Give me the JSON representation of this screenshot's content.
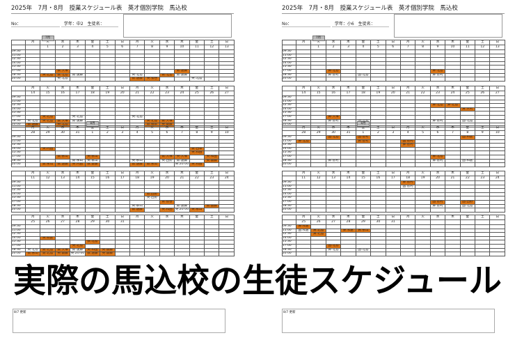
{
  "time_slots": [
    "09:30",
    "11:00",
    "12:30",
    "14:00",
    "15:30",
    "17:00",
    "18:30",
    "20:00"
  ],
  "weekdays": [
    "月",
    "火",
    "水",
    "木",
    "金",
    "土",
    "日",
    "月",
    "火",
    "水",
    "木",
    "金",
    "土",
    "日"
  ],
  "highlight_color": "#e07a1a",
  "caption": "実際の馬込校の生徒スケジュール",
  "sheets": [
    {
      "title": "2025年　7月・8月　授業スケジュール表　英才個別学院　馬込校",
      "no_label": "No：",
      "student_info": "学年：中2　生徒名：",
      "note_label": "8/7 更新",
      "weeks": [
        {
          "dates": [
            "",
            "1",
            "2",
            "3",
            "4",
            "5",
            "6",
            "7",
            "8",
            "9",
            "10",
            "11",
            "12",
            "13"
          ],
          "month_tag": {
            "col": 1,
            "label": "7月"
          },
          "entries": [
            [
              2,
              5,
              "数:大塚",
              1
            ],
            [
              1,
              6,
              "英:北島",
              1
            ],
            [
              2,
              6,
              "数:北島",
              1
            ],
            [
              3,
              6,
              "数:遠藤",
              0
            ],
            [
              2,
              7,
              "英:北島",
              0
            ],
            [
              7,
              6,
              "英:北島",
              0
            ],
            [
              7,
              7,
              "数:遠藤",
              1
            ],
            [
              8,
              7,
              "英:長谷",
              1
            ],
            [
              9,
              6,
              "数:北島",
              1
            ],
            [
              10,
              5,
              "数:遠藤",
              1
            ],
            [
              10,
              6,
              "数:遠藤",
              0
            ],
            [
              11,
              7,
              "英:北島",
              0
            ]
          ]
        },
        {
          "dates": [
            "14",
            "15",
            "16",
            "17",
            "18",
            "19",
            "20",
            "21",
            "22",
            "23",
            "24",
            "25",
            "26",
            "27"
          ],
          "entries": [
            [
              0,
              6,
              "英:北島",
              0
            ],
            [
              0,
              7,
              "数:遠藤",
              1
            ],
            [
              1,
              5,
              "英:北島",
              1
            ],
            [
              1,
              6,
              "英:北島",
              1
            ],
            [
              2,
              6,
              "数:大塚",
              1
            ],
            [
              2,
              7,
              "英:北島",
              1
            ],
            [
              3,
              5,
              "英:北島",
              0
            ],
            [
              3,
              6,
              "数:遠藤",
              0
            ],
            [
              7,
              5,
              "英:北島",
              0
            ],
            [
              8,
              6,
              "英:北島",
              1
            ],
            [
              8,
              7,
              "数:橋本",
              1
            ],
            [
              9,
              6,
              "数:大塚",
              1
            ],
            [
              9,
              7,
              "英:齋藤",
              1
            ]
          ]
        },
        {
          "dates": [
            "28",
            "29",
            "30",
            "31",
            "1",
            "2",
            "3",
            "4",
            "5",
            "6",
            "7",
            "8",
            "9",
            "10"
          ],
          "month_tag": {
            "col": 4,
            "label": "8月"
          },
          "entries": [
            [
              1,
              3,
              "英:内田",
              1
            ],
            [
              2,
              5,
              "数:永山",
              1
            ],
            [
              1,
              7,
              "数:永山",
              1
            ],
            [
              2,
              7,
              "数:遠藤",
              1
            ],
            [
              3,
              6,
              "数:永山",
              0
            ],
            [
              3,
              7,
              "英:内田",
              1
            ],
            [
              4,
              5,
              "英:永山",
              1
            ],
            [
              4,
              6,
              "英:永山",
              0
            ],
            [
              4,
              7,
              "数:齋藤",
              1
            ],
            [
              7,
              6,
              "英:永山",
              0
            ],
            [
              7,
              7,
              "数:遠藤",
              1
            ],
            [
              8,
              7,
              "数:永山",
              1
            ],
            [
              9,
              5,
              "数:大塚",
              1
            ],
            [
              9,
              6,
              "英:西野",
              0
            ],
            [
              10,
              5,
              "英:大塚",
              1
            ],
            [
              10,
              6,
              "数:遠藤",
              0
            ],
            [
              10,
              7,
              "英:20:00",
              0
            ],
            [
              11,
              3,
              "数:西本",
              1
            ],
            [
              11,
              4,
              "英:和田",
              1
            ],
            [
              11,
              7,
              "英:和田",
              1
            ],
            [
              12,
              5,
              "英:和田",
              1
            ],
            [
              12,
              6,
              "英:齋藤",
              1
            ]
          ]
        },
        {
          "dates": [
            "11",
            "12",
            "13",
            "14",
            "15",
            "16",
            "17",
            "18",
            "19",
            "20",
            "21",
            "22",
            "23",
            "24"
          ],
          "entries": [
            [
              8,
              3,
              "数:西野",
              1
            ],
            [
              8,
              4,
              "英:西野",
              0
            ],
            [
              9,
              5,
              "数:長谷",
              1
            ],
            [
              7,
              6,
              "英:永山",
              0
            ],
            [
              7,
              7,
              "数:遠藤",
              1
            ],
            [
              9,
              7,
              "英:和田",
              1
            ],
            [
              10,
              6,
              "数:遠藤",
              0
            ],
            [
              10,
              7,
              "英:20:00",
              0
            ],
            [
              11,
              7,
              "英:永山",
              1
            ],
            [
              12,
              6,
              "数:齋藤",
              1
            ]
          ]
        },
        {
          "dates": [
            "25",
            "26",
            "27",
            "28",
            "29",
            "30",
            "31",
            "",
            "",
            "",
            "",
            "",
            "",
            ""
          ],
          "entries": [
            [
              1,
              3,
              "英:和倉",
              1
            ],
            [
              4,
              4,
              "数:北島",
              1
            ],
            [
              3,
              5,
              "英:北島",
              1
            ],
            [
              0,
              6,
              "英:北島",
              0
            ],
            [
              0,
              7,
              "数:永山",
              1
            ],
            [
              1,
              6,
              "数:北島",
              1
            ],
            [
              1,
              7,
              "数:北島",
              1
            ],
            [
              2,
              6,
              "数:大塚",
              1
            ],
            [
              2,
              7,
              "英:齋藤",
              1
            ],
            [
              3,
              6,
              "数:遠藤",
              0
            ],
            [
              3,
              7,
              "英:20:00",
              0
            ],
            [
              4,
              6,
              "英:和田",
              1
            ],
            [
              4,
              7,
              "数:遠藤",
              1
            ],
            [
              5,
              6,
              "英:齋藤",
              1
            ],
            [
              5,
              7,
              "英:齋藤",
              1
            ]
          ]
        }
      ]
    },
    {
      "title": "2025年　7月・8月　授業スケジュール表　英才個別学院　馬込校",
      "no_label": "No：",
      "student_info": "学年：小6　生徒名：",
      "note_label": "8/7 更新",
      "weeks": [
        {
          "dates": [
            "",
            "1",
            "2",
            "3",
            "4",
            "5",
            "6",
            "7",
            "8",
            "9",
            "10",
            "11",
            "12",
            "13"
          ],
          "month_tag": {
            "col": 1,
            "label": "7月"
          },
          "entries": [
            [
              2,
              5,
              "算:北島",
              1
            ],
            [
              2,
              6,
              "算:菅村",
              0
            ],
            [
              4,
              6,
              "国:北島",
              0
            ],
            [
              9,
              5,
              "算:北島",
              1
            ],
            [
              9,
              6,
              "算:菅村",
              0
            ]
          ]
        },
        {
          "dates": [
            "14",
            "15",
            "16",
            "17",
            "18",
            "19",
            "20",
            "21",
            "22",
            "23",
            "24",
            "25",
            "26",
            "27"
          ],
          "entries": [
            [
              9,
              2,
              "算:北島",
              1
            ],
            [
              10,
              2,
              "算:北島",
              1
            ],
            [
              11,
              3,
              "算:木村",
              1
            ],
            [
              2,
              5,
              "算:大塚",
              1
            ],
            [
              2,
              6,
              "算:菅村",
              0
            ],
            [
              4,
              6,
              "国:北島",
              0
            ],
            [
              9,
              6,
              "算:菅村",
              0
            ],
            [
              11,
              6,
              "国:北島",
              0
            ]
          ]
        },
        {
          "dates": [
            "28",
            "29",
            "30",
            "31",
            "1",
            "2",
            "3",
            "4",
            "5",
            "6",
            "7",
            "8",
            "9",
            "10"
          ],
          "month_tag": {
            "col": 4,
            "label": "8月"
          },
          "entries": [
            [
              2,
              0,
              "国:北島",
              1
            ],
            [
              4,
              0,
              "国:菅村",
              1
            ],
            [
              0,
              1,
              "算:北島",
              1
            ],
            [
              4,
              1,
              "算:菅村",
              1
            ],
            [
              7,
              1,
              "国:菅村",
              1
            ],
            [
              7,
              2,
              "算:菅村",
              1
            ],
            [
              11,
              0,
              "国:和倉",
              1
            ],
            [
              9,
              5,
              "算:北島",
              1
            ],
            [
              2,
              6,
              "算:菅村",
              0
            ],
            [
              9,
              6,
              "算:菅村",
              0
            ],
            [
              11,
              6,
              "国:和倉",
              0
            ]
          ]
        },
        {
          "dates": [
            "11",
            "12",
            "13",
            "14",
            "15",
            "16",
            "17",
            "18",
            "19",
            "20",
            "21",
            "22",
            "23",
            "24"
          ],
          "entries": [
            [
              7,
              0,
              "算:菅村",
              1
            ],
            [
              7,
              1,
              "国:菅村",
              0
            ],
            [
              9,
              5,
              "国:菅村",
              1
            ],
            [
              9,
              6,
              "算:菅村",
              0
            ],
            [
              11,
              5,
              "国:西野",
              1
            ],
            [
              11,
              6,
              "国:北島",
              0
            ]
          ]
        },
        {
          "dates": [
            "25",
            "26",
            "27",
            "28",
            "29",
            "30",
            "31",
            "",
            "",
            "",
            "",
            "",
            "",
            ""
          ],
          "entries": [
            [
              0,
              0,
              "算:和倉",
              1
            ],
            [
              0,
              1,
              "国:和倉",
              0
            ],
            [
              1,
              1,
              "算:北島",
              1
            ],
            [
              1,
              2,
              "算:北島",
              1
            ],
            [
              3,
              1,
              "算:和倉",
              1
            ],
            [
              4,
              1,
              "算:永山",
              1
            ],
            [
              2,
              5,
              "国:北島",
              1
            ],
            [
              2,
              6,
              "算:北島",
              0
            ],
            [
              4,
              6,
              "国:北島",
              0
            ]
          ]
        }
      ]
    }
  ]
}
